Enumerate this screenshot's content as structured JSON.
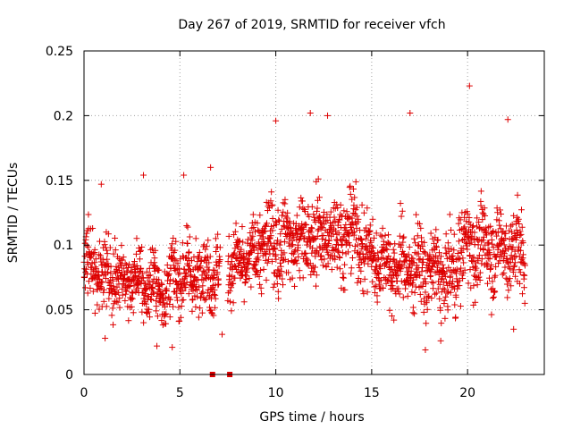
{
  "colors": {
    "series": "#dd0000",
    "axis": "#000000",
    "grid": "#a0a0a0",
    "background": "#ffffff"
  },
  "chart_data": {
    "type": "scatter",
    "title": "Day 267 of 2019, SRMTID for receiver vfch",
    "xlabel": "GPS time / hours",
    "ylabel": "SRMTID / TECUs",
    "xlim": [
      0,
      24
    ],
    "ylim": [
      0,
      0.25
    ],
    "grid": true,
    "marker": "+",
    "x_ticks": [
      0,
      5,
      10,
      15,
      20
    ],
    "x_tick_labels": [
      "0",
      "5",
      "10",
      "15",
      "20"
    ],
    "y_ticks": [
      0,
      0.05,
      0.1,
      0.15,
      0.2,
      0.25
    ],
    "y_tick_labels": [
      "0",
      "0.05",
      "0.1",
      "0.15",
      "0.2",
      "0.25"
    ],
    "series": [
      {
        "name": "SRMTID",
        "note": "approximately 2300 scatter points sampled every ~30 s; the main distribution is summarised by segments of hourly-trend baseline and spread, plus notable outliers",
        "gap_hours": [
          7.1,
          7.5
        ],
        "trend_segments": [
          {
            "from": 0.0,
            "to": 1.0,
            "start_mean": 0.085,
            "end_mean": 0.08,
            "spread": 0.026
          },
          {
            "from": 1.0,
            "to": 4.5,
            "start_mean": 0.078,
            "end_mean": 0.065,
            "spread": 0.024
          },
          {
            "from": 4.5,
            "to": 7.1,
            "start_mean": 0.075,
            "end_mean": 0.08,
            "spread": 0.026
          },
          {
            "from": 7.5,
            "to": 9.0,
            "start_mean": 0.082,
            "end_mean": 0.09,
            "spread": 0.024
          },
          {
            "from": 9.0,
            "to": 14.5,
            "start_mean": 0.1,
            "end_mean": 0.11,
            "spread": 0.03
          },
          {
            "from": 14.5,
            "to": 16.5,
            "start_mean": 0.095,
            "end_mean": 0.08,
            "spread": 0.028
          },
          {
            "from": 16.5,
            "to": 19.5,
            "start_mean": 0.085,
            "end_mean": 0.075,
            "spread": 0.028
          },
          {
            "from": 19.5,
            "to": 23.0,
            "start_mean": 0.1,
            "end_mean": 0.095,
            "spread": 0.03
          }
        ],
        "notable_points": [
          {
            "x": 20.1,
            "y": 0.223
          },
          {
            "x": 11.8,
            "y": 0.202
          },
          {
            "x": 12.7,
            "y": 0.2
          },
          {
            "x": 17.0,
            "y": 0.202
          },
          {
            "x": 22.1,
            "y": 0.197
          },
          {
            "x": 10.0,
            "y": 0.196
          },
          {
            "x": 3.1,
            "y": 0.154
          },
          {
            "x": 0.9,
            "y": 0.147
          },
          {
            "x": 5.2,
            "y": 0.154
          },
          {
            "x": 6.6,
            "y": 0.16
          },
          {
            "x": 1.1,
            "y": 0.028
          },
          {
            "x": 3.8,
            "y": 0.022
          },
          {
            "x": 4.6,
            "y": 0.021
          },
          {
            "x": 7.2,
            "y": 0.031
          },
          {
            "x": 17.8,
            "y": 0.019
          },
          {
            "x": 18.6,
            "y": 0.026
          },
          {
            "x": 22.4,
            "y": 0.035
          },
          {
            "x": 6.7,
            "y": 0.0
          },
          {
            "x": 7.6,
            "y": 0.0
          }
        ]
      }
    ]
  }
}
